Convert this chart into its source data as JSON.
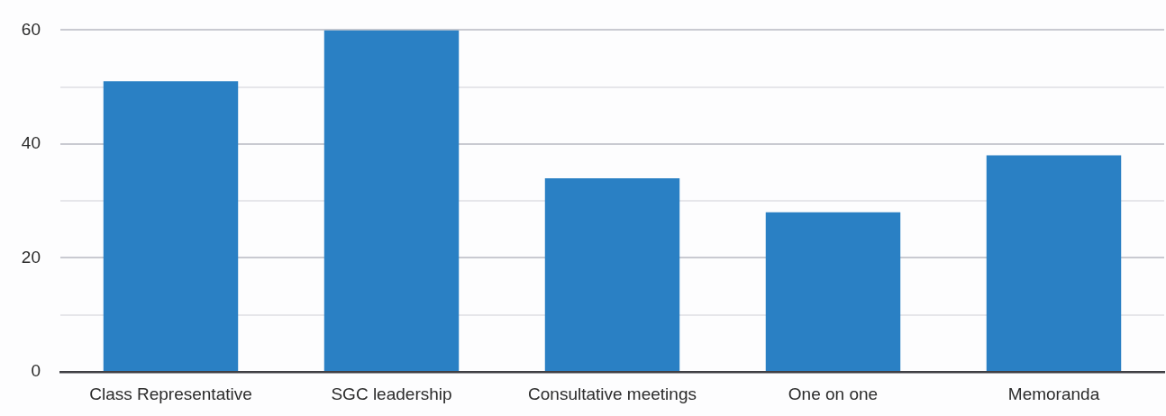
{
  "chart_data": {
    "type": "bar",
    "categories": [
      "Class Representative",
      "SGC leadership",
      "Consultative meetings",
      "One on one",
      "Memoranda"
    ],
    "values": [
      51,
      60,
      34,
      28,
      38
    ],
    "color": "#2a80c4",
    "ylim": [
      0,
      60
    ],
    "yticks": [
      0,
      {
        "value": 10,
        "label": null
      },
      20,
      {
        "value": 30,
        "label": null
      },
      40,
      {
        "value": 50,
        "label": null
      },
      60
    ],
    "grid": "y"
  }
}
